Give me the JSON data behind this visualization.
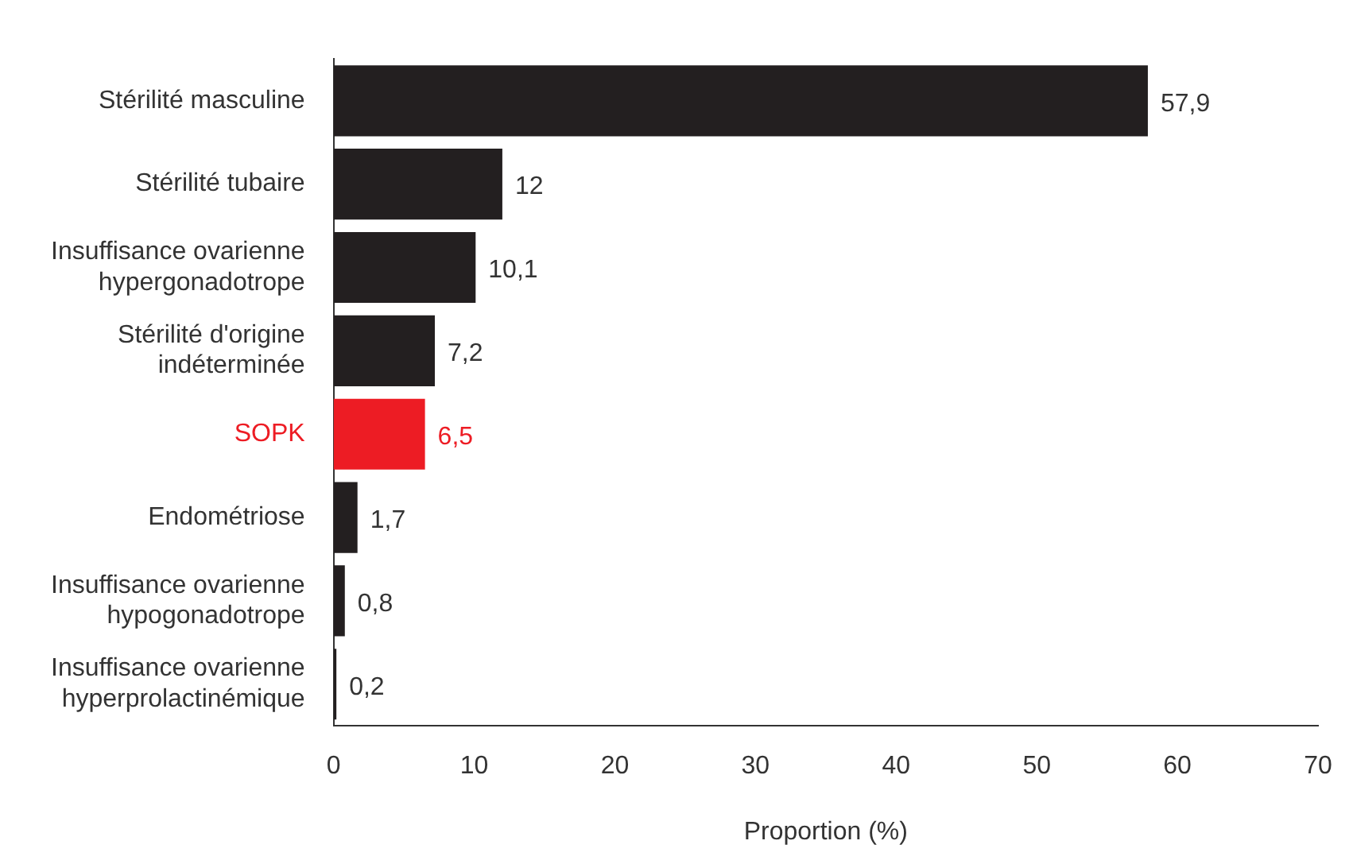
{
  "chart_data": {
    "type": "bar",
    "orientation": "horizontal",
    "xlabel": "Proportion (%)",
    "categories": [
      "Stérilité masculine",
      "Stérilité tubaire",
      "Insuffisance ovarienne hypergonadotrope",
      "Stérilité d'origine indéterminée",
      "SOPK",
      "Endométriose",
      "Insuffisance ovarienne hypogonadotrope",
      "Insuffisance ovarienne hyperprolactinémique"
    ],
    "values": [
      57.9,
      12,
      10.1,
      7.2,
      6.5,
      1.7,
      0.8,
      0.2
    ],
    "value_labels": [
      "57,9",
      "12",
      "10,1",
      "7,2",
      "6,5",
      "1,7",
      "0,8",
      "0,2"
    ],
    "colors": [
      "#231f20",
      "#231f20",
      "#231f20",
      "#231f20",
      "#ed1c24",
      "#231f20",
      "#231f20",
      "#231f20"
    ],
    "xlim": [
      0,
      70
    ],
    "xticks": [
      0,
      10,
      20,
      30,
      40,
      50,
      60,
      70
    ],
    "grid": false,
    "legend": false
  }
}
